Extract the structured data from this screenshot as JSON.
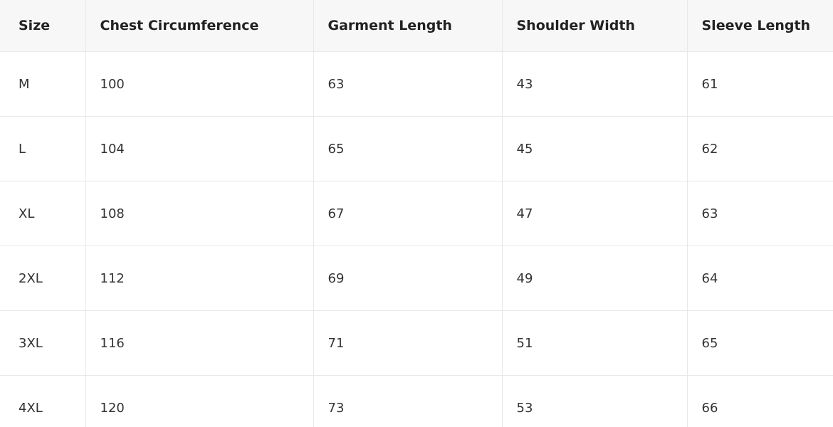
{
  "table": {
    "headers": [
      "Size",
      "Chest Circumference",
      "Garment Length",
      "Shoulder Width",
      "Sleeve Length"
    ],
    "rows": [
      [
        "M",
        100,
        63,
        43,
        61
      ],
      [
        "L",
        104,
        65,
        45,
        62
      ],
      [
        "XL",
        108,
        67,
        47,
        63
      ],
      [
        "2XL",
        112,
        69,
        49,
        64
      ],
      [
        "3XL",
        116,
        71,
        51,
        65
      ],
      [
        "4XL",
        120,
        73,
        53,
        66
      ]
    ]
  }
}
